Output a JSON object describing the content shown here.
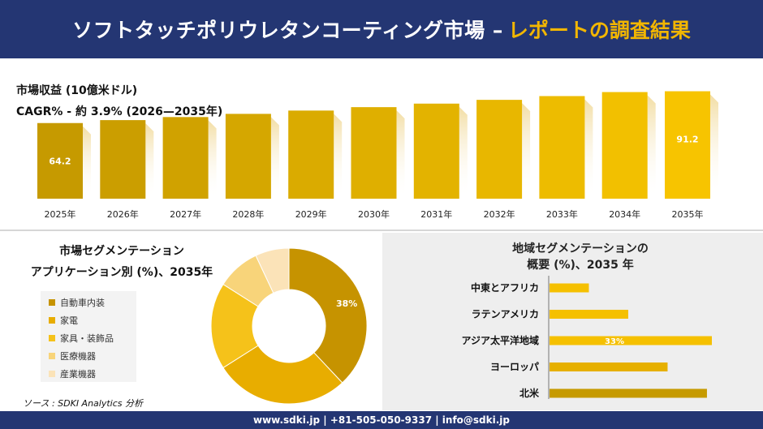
{
  "header": {
    "title": "ソフトタッチポリウレタンコーティング市場 –",
    "accent": "レポートの調査結果"
  },
  "colors": {
    "navy": "#243673",
    "gold": "#f2b600",
    "bar_dark": "#c69a00",
    "bar_light": "#f7c400"
  },
  "chart_data": [
    {
      "type": "bar",
      "title": "市場収益 (10億米ドル)",
      "subtitle": "CAGR% - 約 3.9% (2026—2035年)",
      "categories": [
        "2025年",
        "2026年",
        "2027年",
        "2028年",
        "2029年",
        "2030年",
        "2031年",
        "2032年",
        "2033年",
        "2034年",
        "2035年"
      ],
      "values": [
        64.2,
        66.7,
        69.3,
        72.0,
        74.8,
        77.7,
        80.7,
        83.9,
        87.1,
        90.5,
        91.2
      ],
      "data_labels": [
        "64.2",
        "",
        "",
        "",
        "",
        "",
        "",
        "",
        "",
        "",
        "91.2"
      ],
      "ylim": [
        0,
        95
      ]
    },
    {
      "type": "pie",
      "title_line1": "市場セグメンテーション",
      "title_line2": "アプリケーション別 (%)、2035年",
      "labels": [
        "自動車内装",
        "家電",
        "家具・装飾品",
        "医療機器",
        "産業機器"
      ],
      "values": [
        38,
        28,
        18,
        9,
        7
      ],
      "data_labels": [
        "38%",
        "",
        "",
        "",
        ""
      ],
      "colors": [
        "#c69300",
        "#e8ad00",
        "#f5c21a",
        "#f8d47a",
        "#fbe3b8"
      ]
    },
    {
      "type": "bar",
      "orientation": "horizontal",
      "title_line1": "地域セグメンテーションの",
      "title_line2": "概要 (%)、2035 年",
      "categories": [
        "中東とアフリカ",
        "ラテンアメリカ",
        "アジア太平洋地域",
        "ヨーロッパ",
        "北米"
      ],
      "values": [
        8,
        16,
        33,
        24,
        32
      ],
      "data_labels": [
        "",
        "",
        "33%",
        "",
        ""
      ],
      "colors": [
        "#f5c000",
        "#f5c000",
        "#f5c000",
        "#e6b000",
        "#c69a00"
      ]
    }
  ],
  "source": "ソース : SDKI Analytics 分析",
  "footer": "www.sdki.jp | +81-505-050-9337 | info@sdki.jp"
}
